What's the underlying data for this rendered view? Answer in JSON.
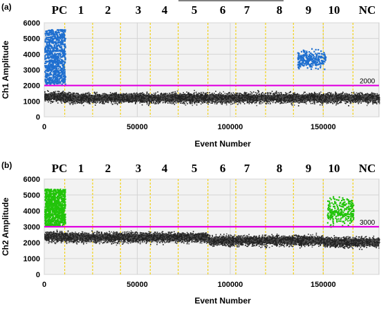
{
  "chart_data": [
    {
      "type": "scatter",
      "panel": "(a)",
      "xlabel": "Event Number",
      "ylabel": "Ch1 Amplitude",
      "xlim": [
        0,
        180000
      ],
      "ylim": [
        0,
        6000
      ],
      "xticks": [
        0,
        50000,
        100000,
        150000
      ],
      "yticks": [
        0,
        1000,
        2000,
        3000,
        4000,
        5000,
        6000
      ],
      "threshold": 2000,
      "threshold_label": "2000",
      "threshold_color": "#e000e0",
      "well_labels": [
        "PC",
        "1",
        "2",
        "3",
        "4",
        "5",
        "6",
        "7",
        "8",
        "9",
        "10",
        "NC"
      ],
      "well_boundaries": [
        11000,
        26000,
        41000,
        57000,
        72000,
        88000,
        103000,
        119000,
        134000,
        150000,
        166000
      ],
      "negative_band": [
        {
          "x_start": 0,
          "x_end": 11000,
          "y_center": 1300
        },
        {
          "x_start": 11000,
          "x_end": 180000,
          "y_center": 1220
        }
      ],
      "positive_clusters": [
        {
          "well": "PC",
          "x_range": [
            0,
            11000
          ],
          "y_range": [
            2100,
            5600
          ],
          "color": "#1f6fcf"
        },
        {
          "well": "9",
          "x_range": [
            136000,
            151000
          ],
          "y_range": [
            3000,
            4400
          ],
          "color": "#1f6fcf"
        }
      ],
      "negative_color": "#222222",
      "grid": true
    },
    {
      "type": "scatter",
      "panel": "(b)",
      "xlabel": "Event Number",
      "ylabel": "Ch2 Amplitude",
      "xlim": [
        0,
        180000
      ],
      "ylim": [
        0,
        6000
      ],
      "xticks": [
        0,
        50000,
        100000,
        150000
      ],
      "yticks": [
        0,
        1000,
        2000,
        3000,
        4000,
        5000,
        6000
      ],
      "threshold": 3000,
      "threshold_label": "3000",
      "threshold_color": "#e000e0",
      "well_labels": [
        "PC",
        "1",
        "2",
        "3",
        "4",
        "5",
        "6",
        "7",
        "8",
        "9",
        "10",
        "NC"
      ],
      "well_boundaries": [
        11000,
        26000,
        41000,
        57000,
        72000,
        88000,
        103000,
        119000,
        134000,
        150000,
        166000
      ],
      "negative_band": [
        {
          "x_start": 0,
          "x_end": 11000,
          "y_center": 2400
        },
        {
          "x_start": 11000,
          "x_end": 88000,
          "y_center": 2350
        },
        {
          "x_start": 88000,
          "x_end": 150000,
          "y_center": 2150
        },
        {
          "x_start": 150000,
          "x_end": 180000,
          "y_center": 2050
        }
      ],
      "positive_clusters": [
        {
          "well": "PC",
          "x_range": [
            0,
            11000
          ],
          "y_range": [
            3100,
            5400
          ],
          "color": "#22c40a"
        },
        {
          "well": "10",
          "x_range": [
            152000,
            166000
          ],
          "y_range": [
            3000,
            5000
          ],
          "color": "#22c40a"
        }
      ],
      "negative_color": "#222222",
      "grid": true
    }
  ]
}
